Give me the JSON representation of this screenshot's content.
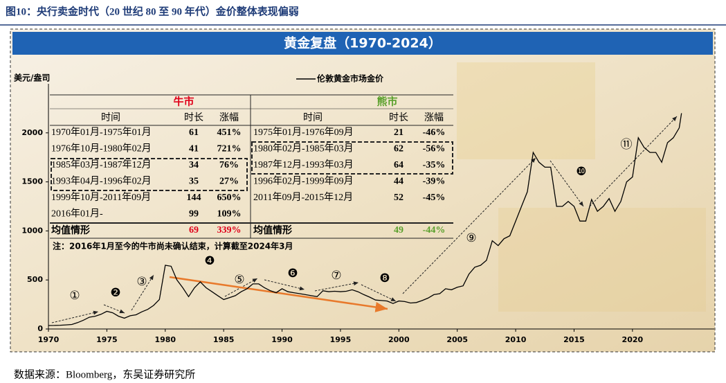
{
  "figure_title": "图10：央行卖金时代（20 世纪 80 至 90 年代）金价整体表现偏弱",
  "source": "数据来源：Bloomberg，东吴证券研究所",
  "chart_data": {
    "type": "line",
    "title": "黄金复盘（1970-2024）",
    "y_label": "美元/盎司",
    "xlim": [
      1970,
      2027
    ],
    "ylim": [
      0,
      2500
    ],
    "xticks": [
      1970,
      1975,
      1980,
      1985,
      1990,
      1995,
      2000,
      2005,
      2010,
      2015,
      2020
    ],
    "yticks": [
      0,
      500,
      1000,
      1500,
      2000
    ],
    "series": [
      {
        "name": "伦敦黄金市场金价",
        "color": "#000000",
        "x": [
          1970,
          1970.5,
          1971,
          1971.5,
          1972,
          1972.5,
          1973,
          1973.5,
          1974,
          1974.5,
          1975,
          1975.5,
          1976,
          1976.5,
          1977,
          1977.5,
          1978,
          1978.5,
          1979,
          1979.5,
          1980,
          1980.5,
          1981,
          1981.5,
          1982,
          1982.5,
          1983,
          1983.5,
          1984,
          1984.5,
          1985,
          1985.5,
          1986,
          1986.5,
          1987,
          1987.5,
          1988,
          1988.5,
          1989,
          1989.5,
          1990,
          1990.5,
          1991,
          1991.5,
          1992,
          1992.5,
          1993,
          1993.5,
          1994,
          1994.5,
          1995,
          1995.5,
          1996,
          1996.5,
          1997,
          1997.5,
          1998,
          1998.5,
          1999,
          1999.5,
          2000,
          2000.5,
          2001,
          2001.5,
          2002,
          2002.5,
          2003,
          2003.5,
          2004,
          2004.5,
          2005,
          2005.5,
          2006,
          2006.5,
          2007,
          2007.5,
          2008,
          2008.5,
          2009,
          2009.5,
          2010,
          2010.5,
          2011,
          2011.5,
          2012,
          2012.5,
          2013,
          2013.5,
          2014,
          2014.5,
          2015,
          2015.5,
          2016,
          2016.5,
          2017,
          2017.5,
          2018,
          2018.5,
          2019,
          2019.5,
          2020,
          2020.5,
          2021,
          2021.5,
          2022,
          2022.5,
          2023,
          2023.5,
          2024,
          2024.2
        ],
        "values": [
          35,
          36,
          38,
          42,
          46,
          65,
          90,
          120,
          130,
          150,
          180,
          165,
          130,
          110,
          135,
          145,
          175,
          200,
          240,
          300,
          650,
          640,
          500,
          420,
          330,
          420,
          480,
          420,
          380,
          340,
          300,
          320,
          340,
          380,
          410,
          460,
          460,
          420,
          390,
          370,
          410,
          380,
          370,
          360,
          350,
          340,
          330,
          390,
          380,
          385,
          380,
          385,
          400,
          380,
          350,
          325,
          295,
          290,
          285,
          260,
          285,
          280,
          265,
          270,
          290,
          315,
          350,
          360,
          410,
          400,
          425,
          440,
          560,
          630,
          650,
          700,
          900,
          850,
          920,
          950,
          1100,
          1250,
          1400,
          1800,
          1700,
          1650,
          1650,
          1250,
          1250,
          1300,
          1250,
          1100,
          1100,
          1320,
          1200,
          1250,
          1330,
          1200,
          1300,
          1500,
          1550,
          1950,
          1850,
          1800,
          1800,
          1700,
          1900,
          1950,
          2050,
          2200
        ]
      }
    ],
    "annotations": [
      "①",
      "❷",
      "③",
      "❹",
      "⑤",
      "❻",
      "⑦",
      "❽",
      "⑨",
      "❿",
      "⑪"
    ]
  },
  "table": {
    "headers": [
      "时间",
      "时长",
      "涨幅"
    ],
    "bull": {
      "title": "牛市",
      "rows": [
        [
          "1970年01月-1975年01月",
          "61",
          "451%"
        ],
        [
          "1976年10月-1980年02月",
          "41",
          "721%"
        ],
        [
          "1985年03月-1987年12月",
          "34",
          "76%"
        ],
        [
          "1993年04月-1996年02月",
          "35",
          "27%"
        ],
        [
          "1999年10月-2011年09月",
          "144",
          "650%"
        ],
        [
          "2016年01月-",
          "99",
          "109%"
        ]
      ],
      "average": [
        "均值情形",
        "69",
        "339%"
      ]
    },
    "bear": {
      "title": "熊市",
      "rows": [
        [
          "1975年01月-1976年09月",
          "21",
          "-46%"
        ],
        [
          "1980年02月-1985年03月",
          "62",
          "-56%"
        ],
        [
          "1987年12月-1993年03月",
          "64",
          "-35%"
        ],
        [
          "1996年02月-1999年09月",
          "44",
          "-39%"
        ],
        [
          "2011年09月-2015年12月",
          "52",
          "-45%"
        ]
      ],
      "average": [
        "均值情形",
        "49",
        "-44%"
      ]
    },
    "note": "注：2016年1月至今的牛市尚未确认结束，计算截至2024年3月"
  }
}
